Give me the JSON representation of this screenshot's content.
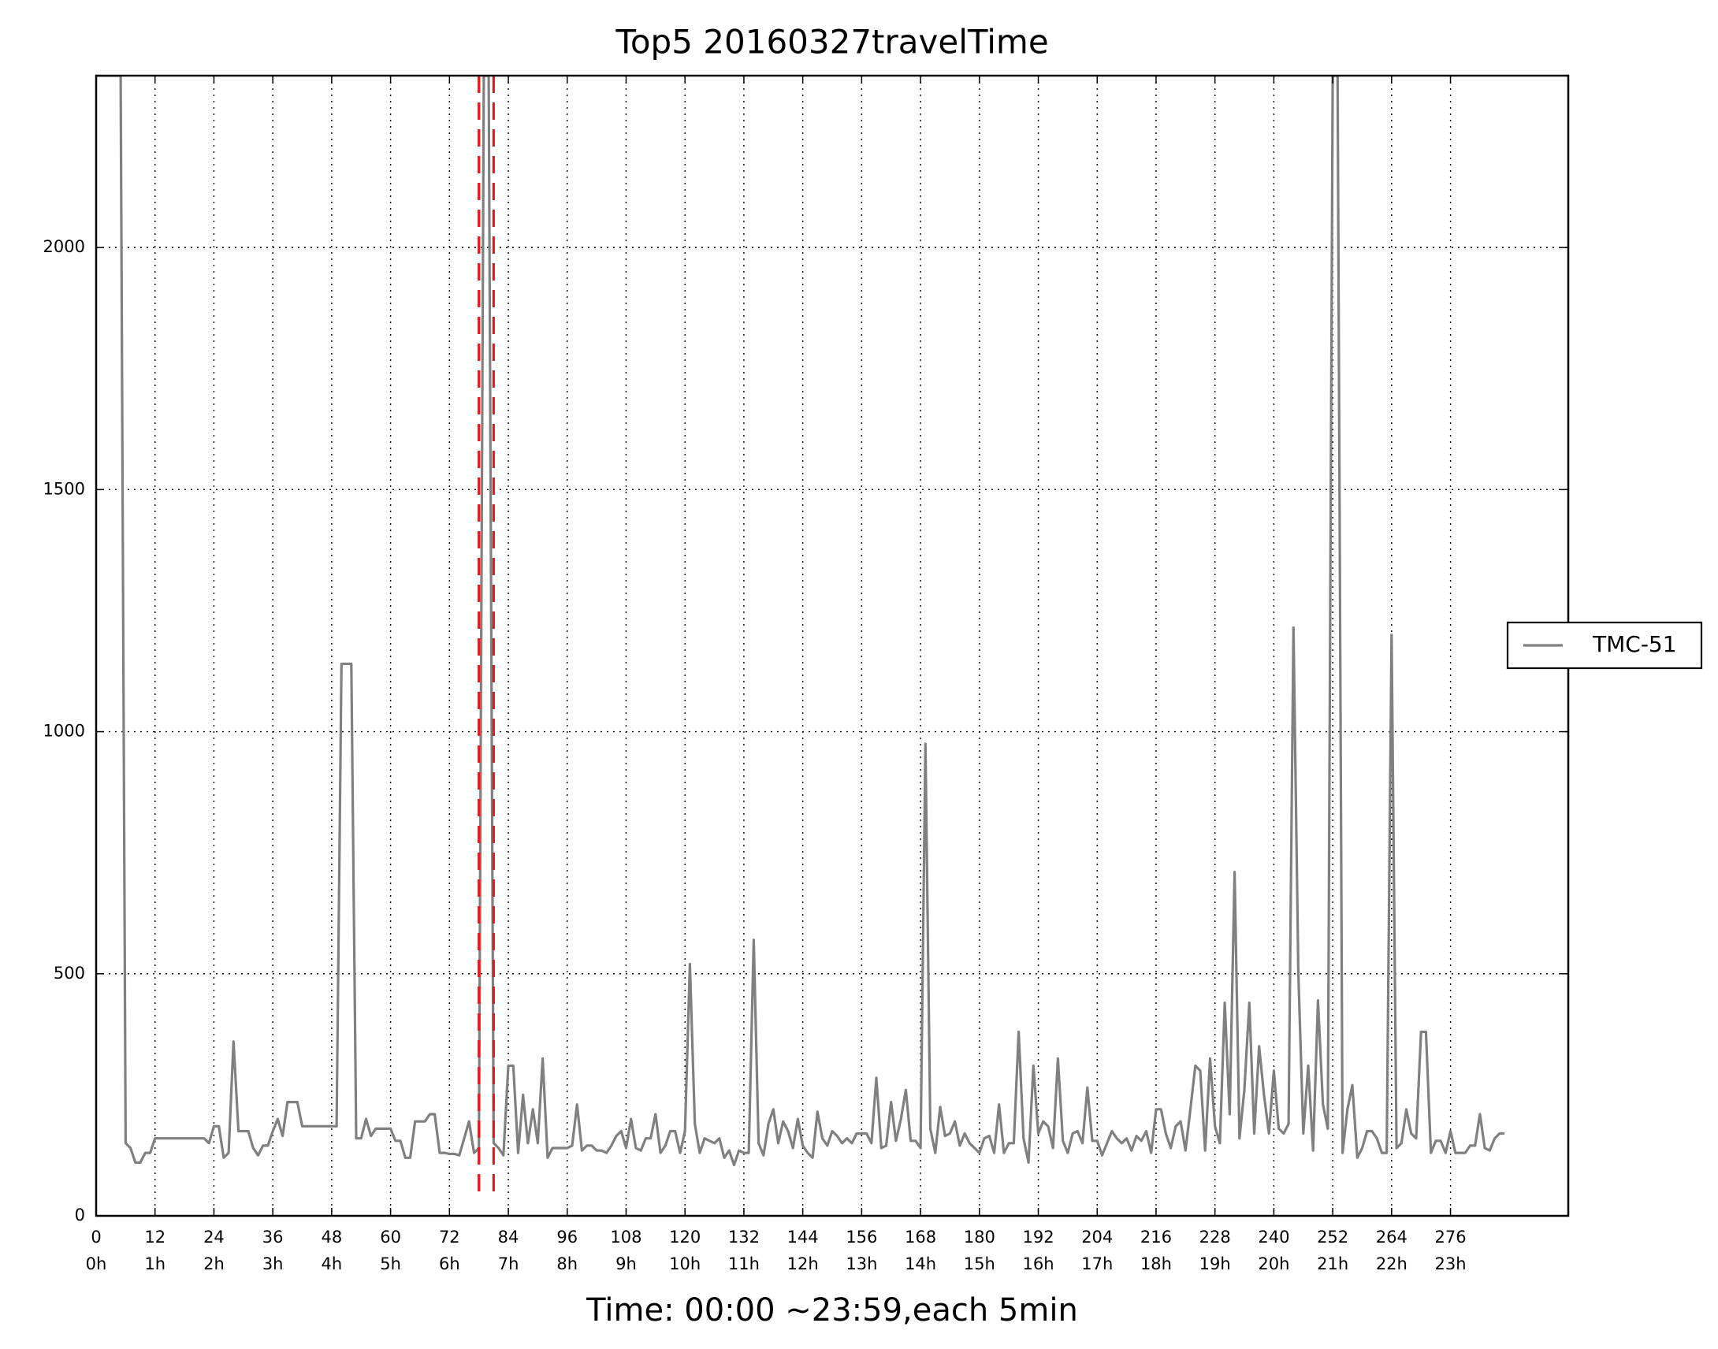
{
  "chart_data": {
    "type": "line",
    "title": "Top5 20160327travelTime",
    "xlabel": "Time: 00:00 ~23:59,each 5min",
    "x": [
      0,
      1,
      2,
      3,
      4,
      5,
      6,
      7,
      8,
      9,
      10,
      11,
      12,
      13,
      14,
      15,
      16,
      17,
      18,
      19,
      20,
      21,
      22,
      23,
      24,
      25,
      26,
      27,
      28,
      29,
      30,
      31,
      32,
      33,
      34,
      35,
      36,
      37,
      38,
      39,
      40,
      41,
      42,
      43,
      44,
      45,
      46,
      47,
      48,
      49,
      50,
      51,
      52,
      53,
      54,
      55,
      56,
      57,
      58,
      59,
      60,
      61,
      62,
      63,
      64,
      65,
      66,
      67,
      68,
      69,
      70,
      71,
      72,
      73,
      74,
      75,
      76,
      77,
      78,
      79,
      80,
      81,
      82,
      83,
      84,
      85,
      86,
      87,
      88,
      89,
      90,
      91,
      92,
      93,
      94,
      95,
      96,
      97,
      98,
      99,
      100,
      101,
      102,
      103,
      104,
      105,
      106,
      107,
      108,
      109,
      110,
      111,
      112,
      113,
      114,
      115,
      116,
      117,
      118,
      119,
      120,
      121,
      122,
      123,
      124,
      125,
      126,
      127,
      128,
      129,
      130,
      131,
      132,
      133,
      134,
      135,
      136,
      137,
      138,
      139,
      140,
      141,
      142,
      143,
      144,
      145,
      146,
      147,
      148,
      149,
      150,
      151,
      152,
      153,
      154,
      155,
      156,
      157,
      158,
      159,
      160,
      161,
      162,
      163,
      164,
      165,
      166,
      167,
      168,
      169,
      170,
      171,
      172,
      173,
      174,
      175,
      176,
      177,
      178,
      179,
      180,
      181,
      182,
      183,
      184,
      185,
      186,
      187,
      188,
      189,
      190,
      191,
      192,
      193,
      194,
      195,
      196,
      197,
      198,
      199,
      200,
      201,
      202,
      203,
      204,
      205,
      206,
      207,
      208,
      209,
      210,
      211,
      212,
      213,
      214,
      215,
      216,
      217,
      218,
      219,
      220,
      221,
      222,
      223,
      224,
      225,
      226,
      227,
      228,
      229,
      230,
      231,
      232,
      233,
      234,
      235,
      236,
      237,
      238,
      239,
      240,
      241,
      242,
      243,
      244,
      245,
      246,
      247,
      248,
      249,
      250,
      251,
      252,
      253,
      254,
      255,
      256,
      257,
      258,
      259,
      260,
      261,
      262,
      263,
      264,
      265,
      266,
      267,
      268,
      269,
      270,
      271,
      272,
      273,
      274,
      275,
      276,
      277,
      278,
      279,
      280,
      281,
      282,
      283,
      284,
      285,
      286,
      287
    ],
    "series": [
      {
        "name": "TMC-51",
        "color": "#808080",
        "values": [
          2355,
          2355,
          2355,
          2355,
          2355,
          2355,
          150,
          140,
          110,
          110,
          130,
          130,
          160,
          160,
          160,
          160,
          160,
          160,
          160,
          160,
          160,
          160,
          160,
          150,
          185,
          185,
          120,
          130,
          360,
          175,
          175,
          175,
          140,
          125,
          145,
          145,
          175,
          200,
          165,
          235,
          235,
          235,
          185,
          185,
          185,
          185,
          185,
          185,
          185,
          185,
          1140,
          1140,
          1140,
          160,
          160,
          200,
          165,
          180,
          180,
          180,
          180,
          155,
          155,
          120,
          120,
          195,
          195,
          195,
          210,
          210,
          130,
          130,
          128,
          128,
          125,
          160,
          195,
          130,
          140,
          2355,
          2355,
          150,
          140,
          125,
          310,
          310,
          130,
          250,
          150,
          220,
          150,
          325,
          120,
          140,
          140,
          140,
          140,
          145,
          230,
          135,
          145,
          145,
          135,
          135,
          130,
          145,
          165,
          175,
          140,
          200,
          140,
          135,
          160,
          160,
          210,
          130,
          145,
          175,
          175,
          130,
          175,
          520,
          190,
          130,
          160,
          155,
          150,
          160,
          120,
          135,
          105,
          135,
          130,
          130,
          570,
          150,
          125,
          190,
          220,
          150,
          195,
          175,
          140,
          200,
          145,
          130,
          120,
          215,
          160,
          145,
          175,
          165,
          150,
          160,
          150,
          170,
          170,
          170,
          150,
          285,
          140,
          145,
          235,
          155,
          200,
          260,
          155,
          155,
          140,
          975,
          180,
          130,
          225,
          165,
          170,
          195,
          145,
          170,
          150,
          140,
          130,
          160,
          165,
          130,
          230,
          130,
          150,
          150,
          380,
          160,
          110,
          310,
          170,
          195,
          185,
          140,
          325,
          155,
          130,
          170,
          175,
          150,
          265,
          155,
          155,
          125,
          150,
          175,
          160,
          150,
          160,
          135,
          165,
          155,
          175,
          130,
          220,
          220,
          170,
          140,
          185,
          195,
          135,
          220,
          310,
          300,
          135,
          325,
          185,
          150,
          440,
          210,
          710,
          160,
          260,
          440,
          170,
          350,
          250,
          170,
          300,
          180,
          170,
          190,
          1215,
          500,
          170,
          310,
          135,
          445,
          230,
          180,
          2355,
          2355,
          130,
          220,
          270,
          120,
          140,
          175,
          175,
          160,
          130,
          130,
          1200,
          140,
          150,
          220,
          170,
          160,
          380,
          380,
          130,
          155,
          155,
          130,
          175,
          130,
          130,
          130,
          145,
          145,
          210,
          140,
          135,
          160,
          170,
          170
        ]
      }
    ],
    "vlines": [
      78,
      81
    ],
    "vline_color": "#e41a1c",
    "xlim": [
      0,
      300
    ],
    "ylim": [
      0,
      2355
    ],
    "xticks": [
      0,
      12,
      24,
      36,
      48,
      60,
      72,
      84,
      96,
      108,
      120,
      132,
      144,
      156,
      168,
      180,
      192,
      204,
      216,
      228,
      240,
      252,
      264,
      276
    ],
    "xtick_hours": [
      "0h",
      "1h",
      "2h",
      "3h",
      "4h",
      "5h",
      "6h",
      "7h",
      "8h",
      "9h",
      "10h",
      "11h",
      "12h",
      "13h",
      "14h",
      "15h",
      "16h",
      "17h",
      "18h",
      "19h",
      "20h",
      "21h",
      "22h",
      "23h"
    ],
    "yticks": [
      0,
      500,
      1000,
      1500,
      2000
    ],
    "grid": true,
    "legend": "right"
  }
}
